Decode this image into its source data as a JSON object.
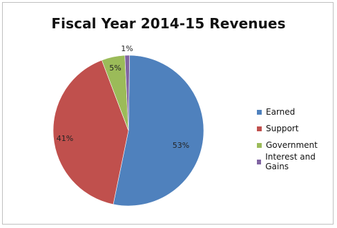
{
  "chart_data": {
    "type": "pie",
    "title": "Fiscal Year 2014-15 Revenues",
    "slices": [
      {
        "label": "Earned",
        "value": 53,
        "display": "53%",
        "color": "#4f81bd"
      },
      {
        "label": "Support",
        "value": 41,
        "display": "41%",
        "color": "#c0504d"
      },
      {
        "label": "Government",
        "value": 5,
        "display": "5%",
        "color": "#9bbb59"
      },
      {
        "label": "Interest and Gains",
        "value": 1,
        "display": "1%",
        "color": "#8064a2"
      }
    ],
    "legend_position": "right"
  }
}
